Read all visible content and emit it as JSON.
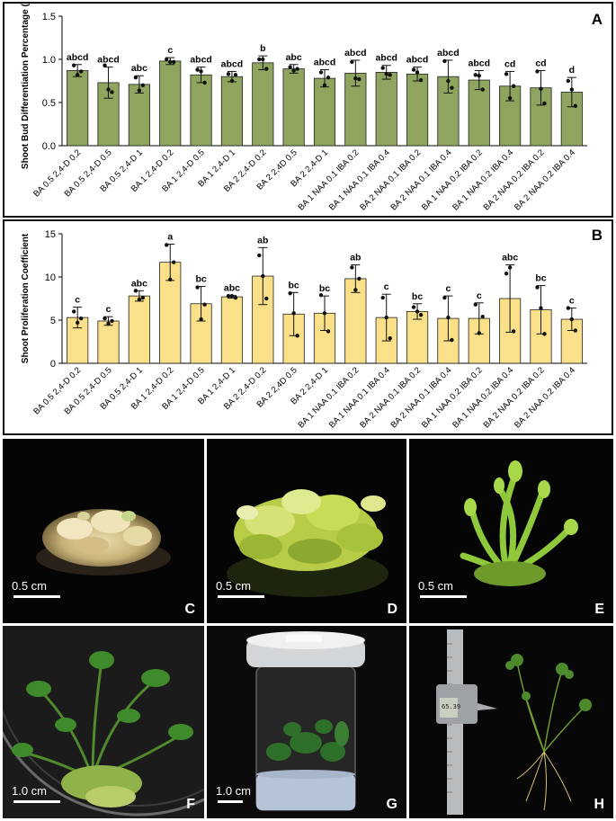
{
  "chart_data": [
    {
      "panel": "A",
      "type": "bar",
      "ylabel": "Shoot Bud Differentiation Percentage (%)",
      "ylim": [
        0,
        1.5
      ],
      "yticks": [
        "0.0",
        "0.5",
        "1.0",
        "1.5"
      ],
      "bar_color": "#8fa45e",
      "categories": [
        "BA 0.5 2,4-D 0.2",
        "BA 0.5 2,4-D 0.5",
        "BA 0.5 2,4-D 1",
        "BA 1 2,4-D 0.2",
        "BA 1 2,4-D 0.5",
        "BA 1 2,4-D 1",
        "BA 2 2,4-D 0.2",
        "BA 2 2,4D 0.5",
        "BA 2 2,4-D 1",
        "BA 1 NAA 0.1 IBA 0.2",
        "BA 1 NAA 0.1 IBA 0.4",
        "BA 2 NAA 0.1 IBA 0.2",
        "BA 2 NAA 0.1 IBA 0.4",
        "BA 1 NAA 0.2 IBA 0.2",
        "BA 1 NAA 0.2 IBA 0.4",
        "BA 2 NAA 0.2 IBA 0.2",
        "BA 2 NAA 0.2 IBA 0.4"
      ],
      "values": [
        0.87,
        0.73,
        0.71,
        0.98,
        0.82,
        0.8,
        0.96,
        0.89,
        0.78,
        0.84,
        0.85,
        0.83,
        0.8,
        0.76,
        0.69,
        0.67,
        0.62
      ],
      "errors": [
        0.07,
        0.18,
        0.1,
        0.04,
        0.09,
        0.06,
        0.08,
        0.05,
        0.1,
        0.15,
        0.08,
        0.08,
        0.19,
        0.11,
        0.17,
        0.2,
        0.17
      ],
      "points": [
        [
          0.93,
          0.82,
          0.86
        ],
        [
          0.93,
          0.65,
          0.62
        ],
        [
          0.79,
          0.64,
          0.7
        ],
        [
          1.0,
          0.97,
          0.97
        ],
        [
          0.88,
          0.86,
          0.73
        ],
        [
          0.83,
          0.75,
          0.82
        ],
        [
          1.0,
          1.0,
          0.89
        ],
        [
          0.91,
          0.87,
          0.89
        ],
        [
          0.85,
          0.7,
          0.79
        ],
        [
          0.97,
          0.78,
          0.77
        ],
        [
          0.9,
          0.83,
          0.82
        ],
        [
          0.88,
          0.85,
          0.76
        ],
        [
          0.98,
          0.75,
          0.67
        ],
        [
          0.82,
          0.81,
          0.65
        ],
        [
          0.83,
          0.55,
          0.69
        ],
        [
          0.86,
          0.66,
          0.49
        ],
        [
          0.75,
          0.65,
          0.46
        ]
      ],
      "letters": [
        "abcd",
        "abcd",
        "abc",
        "c",
        "abcd",
        "abcd",
        "b",
        "abc",
        "abcd",
        "abcd",
        "abcd",
        "abcd",
        "abcd",
        "abcd",
        "cd",
        "cd",
        "d"
      ]
    },
    {
      "panel": "B",
      "type": "bar",
      "ylabel": "Shoot Proliferation Coefficient",
      "ylim": [
        0,
        15
      ],
      "yticks": [
        "0",
        "5",
        "10",
        "15"
      ],
      "bar_color": "#fbe08a",
      "categories": [
        "BA 0.5 2,4-D 0.2",
        "BA 0.5 2,4-D 0.5",
        "BA 0.5 2,4-D 1",
        "BA 1 2,4-D 0.2",
        "BA 1 2,4-D 0.5",
        "BA 1 2,4-D 1",
        "BA 2 2,4-D 0.2",
        "BA 2 2,4D 0.5",
        "BA 2 2,4-D 1",
        "BA 1 NAA 0.1 IBA 0.2",
        "BA 1 NAA 0.1 IBA 0.4",
        "BA 2 NAA 0.1 IBA 0.2",
        "BA 2 NAA 0.1 IBA 0.4",
        "BA 1 NAA 0.2 IBA 0.2",
        "BA 1 NAA 0.2 IBA 0.4",
        "BA 2 NAA 0.2 IBA 0.2",
        "BA 2 NAA 0.2 IBA 0.4"
      ],
      "values": [
        5.3,
        4.9,
        7.8,
        11.7,
        6.9,
        7.7,
        10.1,
        5.7,
        5.8,
        9.8,
        5.3,
        6.0,
        5.2,
        5.2,
        7.5,
        6.2,
        5.1
      ],
      "errors": [
        1.2,
        0.5,
        0.6,
        2.1,
        2.0,
        0.15,
        3.3,
        2.5,
        2.0,
        1.6,
        2.7,
        0.9,
        2.6,
        1.8,
        3.9,
        2.8,
        1.3
      ],
      "points": [
        [
          6.0,
          4.7,
          5.2
        ],
        [
          5.2,
          4.6,
          4.9
        ],
        [
          8.4,
          7.4,
          7.6
        ],
        [
          13.7,
          9.7,
          11.7
        ],
        [
          8.8,
          5.1,
          6.8
        ],
        [
          7.8,
          7.8,
          7.6
        ],
        [
          12.5,
          10.1,
          7.5
        ],
        [
          8.1,
          5.8,
          3.2
        ],
        [
          7.9,
          5.8,
          3.7
        ],
        [
          11.1,
          8.5,
          9.8
        ],
        [
          7.6,
          5.3,
          2.9
        ],
        [
          6.5,
          6.0,
          5.6
        ],
        [
          7.6,
          5.3,
          2.7
        ],
        [
          6.8,
          3.5,
          5.4
        ],
        [
          10.4,
          11.1,
          3.7
        ],
        [
          8.8,
          6.4,
          3.4
        ],
        [
          6.4,
          5.1,
          3.8
        ]
      ],
      "letters": [
        "c",
        "c",
        "abc",
        "a",
        "bc",
        "abc",
        "ab",
        "bc",
        "bc",
        "ab",
        "c",
        "bc",
        "c",
        "c",
        "abc",
        "bc",
        "c"
      ]
    }
  ],
  "panel_labels": {
    "a": "A",
    "b": "B"
  },
  "photos": {
    "c": {
      "label": "C",
      "scale": "0.5 cm"
    },
    "d": {
      "label": "D",
      "scale": "0.5 cm"
    },
    "e": {
      "label": "E",
      "scale": "0.5 cm"
    },
    "f": {
      "label": "F",
      "scale": "1.0 cm"
    },
    "g": {
      "label": "G",
      "scale": "1.0 cm"
    },
    "h": {
      "label": "H",
      "caliper_reading": "65.39"
    }
  }
}
